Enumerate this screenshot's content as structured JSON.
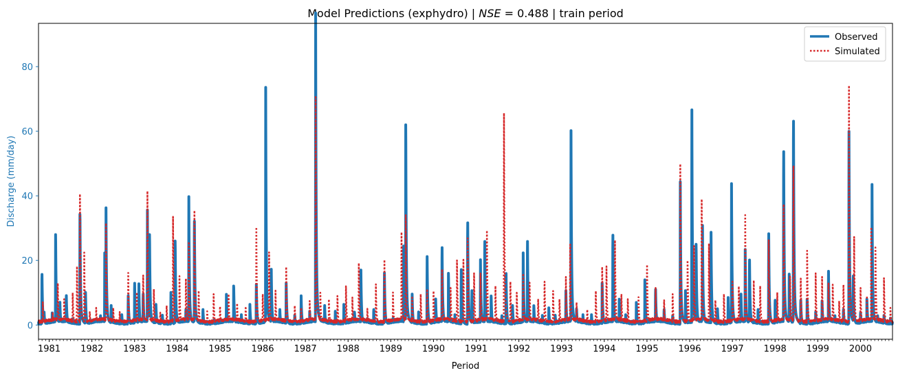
{
  "chart_data": {
    "type": "line",
    "title": "Model Predictions (exphydro) | NSE = 0.488 | train period",
    "title_parts": {
      "prefix": "Model Predictions (exphydro) | ",
      "metric": "NSE",
      "suffix": " = 0.488 | train period"
    },
    "xlabel": "Period",
    "ylabel": "Discharge (mm/day)",
    "xlim": [
      1980.75,
      2000.75
    ],
    "ylim": [
      -4.4,
      93.4
    ],
    "x_tick_labels": [
      "1981",
      "1982",
      "1983",
      "1984",
      "1985",
      "1986",
      "1987",
      "1988",
      "1989",
      "1990",
      "1991",
      "1992",
      "1993",
      "1994",
      "1995",
      "1996",
      "1997",
      "1998",
      "1999",
      "2000"
    ],
    "x_ticks": [
      1981,
      1982,
      1983,
      1984,
      1985,
      1986,
      1987,
      1988,
      1989,
      1990,
      1991,
      1992,
      1993,
      1994,
      1995,
      1996,
      1997,
      1998,
      1999,
      2000
    ],
    "y_ticks": [
      0,
      20,
      40,
      60,
      80
    ],
    "y_tick_labels": [
      "0",
      "20",
      "40",
      "60",
      "80"
    ],
    "legend": {
      "placement": "top-right",
      "entries": [
        "Observed",
        "Simulated"
      ]
    },
    "colors": {
      "observed": "#1f77b4",
      "simulated": "#d62728",
      "ylabel": "#1f77b4"
    },
    "grid": false,
    "series": [
      {
        "name": "Observed",
        "style": "solid",
        "peaks": [
          [
            1980.83,
            16.5
          ],
          [
            1980.88,
            4
          ],
          [
            1981.07,
            3.5
          ],
          [
            1981.15,
            28
          ],
          [
            1981.25,
            7
          ],
          [
            1981.4,
            9.5
          ],
          [
            1981.55,
            2
          ],
          [
            1981.72,
            35.5
          ],
          [
            1981.85,
            10
          ],
          [
            1982.0,
            1.5
          ],
          [
            1982.2,
            3
          ],
          [
            1982.3,
            21
          ],
          [
            1982.33,
            34.5
          ],
          [
            1982.45,
            6
          ],
          [
            1982.7,
            3
          ],
          [
            1982.85,
            9
          ],
          [
            1983.0,
            13.5
          ],
          [
            1983.1,
            12
          ],
          [
            1983.2,
            10
          ],
          [
            1983.3,
            33.5
          ],
          [
            1983.35,
            28
          ],
          [
            1983.5,
            6
          ],
          [
            1983.65,
            3
          ],
          [
            1983.85,
            10
          ],
          [
            1983.95,
            26
          ],
          [
            1984.2,
            5
          ],
          [
            1984.27,
            37
          ],
          [
            1984.4,
            33.5
          ],
          [
            1984.6,
            5
          ],
          [
            1984.85,
            1.5
          ],
          [
            1985.15,
            9.5
          ],
          [
            1985.32,
            12.5
          ],
          [
            1985.5,
            3
          ],
          [
            1985.7,
            6
          ],
          [
            1985.85,
            12.5
          ],
          [
            1986.07,
            68.5
          ],
          [
            1986.2,
            18
          ],
          [
            1986.4,
            5
          ],
          [
            1986.55,
            13
          ],
          [
            1986.75,
            3
          ],
          [
            1986.9,
            8.5
          ],
          [
            1987.1,
            4
          ],
          [
            1987.24,
            89
          ],
          [
            1987.45,
            6
          ],
          [
            1987.7,
            4
          ],
          [
            1987.9,
            6
          ],
          [
            1988.15,
            4
          ],
          [
            1988.3,
            16
          ],
          [
            1988.45,
            2
          ],
          [
            1988.6,
            5
          ],
          [
            1988.85,
            16
          ],
          [
            1989.05,
            2
          ],
          [
            1989.3,
            23
          ],
          [
            1989.35,
            62
          ],
          [
            1989.5,
            9
          ],
          [
            1989.65,
            4
          ],
          [
            1989.85,
            21
          ],
          [
            1990.05,
            8
          ],
          [
            1990.2,
            25
          ],
          [
            1990.35,
            16
          ],
          [
            1990.5,
            3
          ],
          [
            1990.65,
            17
          ],
          [
            1990.8,
            33
          ],
          [
            1990.9,
            10
          ],
          [
            1991.1,
            19
          ],
          [
            1991.2,
            27
          ],
          [
            1991.35,
            9
          ],
          [
            1991.6,
            3
          ],
          [
            1991.7,
            15
          ],
          [
            1991.85,
            6
          ],
          [
            1992.1,
            21
          ],
          [
            1992.2,
            27
          ],
          [
            1992.35,
            6
          ],
          [
            1992.55,
            3
          ],
          [
            1992.7,
            5
          ],
          [
            1992.85,
            3
          ],
          [
            1993.1,
            10
          ],
          [
            1993.22,
            59
          ],
          [
            1993.35,
            5
          ],
          [
            1993.5,
            3
          ],
          [
            1993.7,
            3
          ],
          [
            1993.95,
            13
          ],
          [
            1994.2,
            29
          ],
          [
            1994.35,
            8
          ],
          [
            1994.5,
            3
          ],
          [
            1994.75,
            7
          ],
          [
            1994.95,
            14
          ],
          [
            1995.2,
            11.5
          ],
          [
            1995.4,
            5
          ],
          [
            1995.6,
            3
          ],
          [
            1995.78,
            40
          ],
          [
            1995.9,
            10
          ],
          [
            1996.05,
            66
          ],
          [
            1996.15,
            25
          ],
          [
            1996.3,
            29
          ],
          [
            1996.5,
            27
          ],
          [
            1996.65,
            5
          ],
          [
            1996.9,
            8
          ],
          [
            1996.98,
            39.5
          ],
          [
            1997.2,
            10
          ],
          [
            1997.3,
            22
          ],
          [
            1997.4,
            21
          ],
          [
            1997.6,
            5
          ],
          [
            1997.85,
            28
          ],
          [
            1998.0,
            8
          ],
          [
            1998.2,
            56
          ],
          [
            1998.33,
            15
          ],
          [
            1998.43,
            66.5
          ],
          [
            1998.6,
            8
          ],
          [
            1998.75,
            8
          ],
          [
            1998.95,
            4
          ],
          [
            1999.1,
            7
          ],
          [
            1999.25,
            16.5
          ],
          [
            1999.4,
            3
          ],
          [
            1999.6,
            5
          ],
          [
            1999.73,
            57
          ],
          [
            1999.83,
            16
          ],
          [
            2000.0,
            4
          ],
          [
            2000.15,
            8
          ],
          [
            2000.27,
            40.5
          ],
          [
            2000.4,
            3
          ],
          [
            2000.55,
            3
          ],
          [
            2000.7,
            2
          ]
        ]
      },
      {
        "name": "Simulated",
        "style": "dotted",
        "peaks": [
          [
            1980.85,
            7
          ],
          [
            1981.08,
            4
          ],
          [
            1981.2,
            13.5
          ],
          [
            1981.35,
            8
          ],
          [
            1981.55,
            10
          ],
          [
            1981.65,
            18
          ],
          [
            1981.72,
            42
          ],
          [
            1981.82,
            22
          ],
          [
            1981.95,
            4
          ],
          [
            1982.1,
            5
          ],
          [
            1982.33,
            30
          ],
          [
            1982.5,
            5
          ],
          [
            1982.65,
            4
          ],
          [
            1982.85,
            16
          ],
          [
            1983.05,
            10
          ],
          [
            1983.2,
            16
          ],
          [
            1983.3,
            39
          ],
          [
            1983.45,
            11
          ],
          [
            1983.6,
            4
          ],
          [
            1983.75,
            6
          ],
          [
            1983.9,
            31.5
          ],
          [
            1984.05,
            15
          ],
          [
            1984.2,
            15
          ],
          [
            1984.27,
            24
          ],
          [
            1984.4,
            37
          ],
          [
            1984.5,
            10
          ],
          [
            1984.7,
            4
          ],
          [
            1984.85,
            9.5
          ],
          [
            1985.0,
            6
          ],
          [
            1985.2,
            10
          ],
          [
            1985.4,
            7
          ],
          [
            1985.6,
            6
          ],
          [
            1985.85,
            30
          ],
          [
            1986.0,
            10
          ],
          [
            1986.15,
            22.5
          ],
          [
            1986.3,
            10
          ],
          [
            1986.55,
            18
          ],
          [
            1986.75,
            6
          ],
          [
            1986.9,
            5
          ],
          [
            1987.1,
            7
          ],
          [
            1987.24,
            65
          ],
          [
            1987.35,
            10
          ],
          [
            1987.55,
            8
          ],
          [
            1987.75,
            9
          ],
          [
            1987.95,
            12
          ],
          [
            1988.1,
            8
          ],
          [
            1988.25,
            19
          ],
          [
            1988.45,
            5
          ],
          [
            1988.65,
            12.5
          ],
          [
            1988.85,
            20
          ],
          [
            1989.05,
            10
          ],
          [
            1989.25,
            28.5
          ],
          [
            1989.35,
            34
          ],
          [
            1989.5,
            8
          ],
          [
            1989.7,
            9
          ],
          [
            1989.85,
            11
          ],
          [
            1990.0,
            11
          ],
          [
            1990.2,
            18
          ],
          [
            1990.4,
            12
          ],
          [
            1990.55,
            20
          ],
          [
            1990.7,
            19
          ],
          [
            1990.8,
            28
          ],
          [
            1990.95,
            16
          ],
          [
            1991.1,
            15
          ],
          [
            1991.25,
            29
          ],
          [
            1991.45,
            12
          ],
          [
            1991.65,
            65
          ],
          [
            1991.8,
            14
          ],
          [
            1991.95,
            10
          ],
          [
            1992.1,
            15
          ],
          [
            1992.25,
            13
          ],
          [
            1992.45,
            8
          ],
          [
            1992.6,
            14
          ],
          [
            1992.8,
            11
          ],
          [
            1992.95,
            8
          ],
          [
            1993.1,
            14
          ],
          [
            1993.2,
            26
          ],
          [
            1993.35,
            7
          ],
          [
            1993.6,
            5
          ],
          [
            1993.8,
            11
          ],
          [
            1993.95,
            18
          ],
          [
            1994.05,
            18
          ],
          [
            1994.25,
            26
          ],
          [
            1994.4,
            10
          ],
          [
            1994.55,
            8
          ],
          [
            1994.8,
            9
          ],
          [
            1995.0,
            19.5
          ],
          [
            1995.2,
            12
          ],
          [
            1995.4,
            8
          ],
          [
            1995.6,
            10
          ],
          [
            1995.78,
            45
          ],
          [
            1995.95,
            20
          ],
          [
            1996.1,
            23
          ],
          [
            1996.28,
            39
          ],
          [
            1996.45,
            25
          ],
          [
            1996.6,
            8
          ],
          [
            1996.8,
            10
          ],
          [
            1997.0,
            14
          ],
          [
            1997.15,
            12
          ],
          [
            1997.3,
            32
          ],
          [
            1997.5,
            13
          ],
          [
            1997.65,
            12
          ],
          [
            1997.85,
            26
          ],
          [
            1998.05,
            10
          ],
          [
            1998.2,
            39
          ],
          [
            1998.35,
            15
          ],
          [
            1998.43,
            52
          ],
          [
            1998.6,
            15
          ],
          [
            1998.75,
            23
          ],
          [
            1998.95,
            16
          ],
          [
            1999.1,
            14
          ],
          [
            1999.25,
            13
          ],
          [
            1999.35,
            12.5
          ],
          [
            1999.5,
            7
          ],
          [
            1999.6,
            13
          ],
          [
            1999.73,
            70.5
          ],
          [
            1999.85,
            27
          ],
          [
            2000.0,
            12
          ],
          [
            2000.15,
            9
          ],
          [
            2000.25,
            30
          ],
          [
            2000.35,
            24
          ],
          [
            2000.55,
            14.5
          ],
          [
            2000.7,
            5
          ]
        ]
      }
    ]
  }
}
